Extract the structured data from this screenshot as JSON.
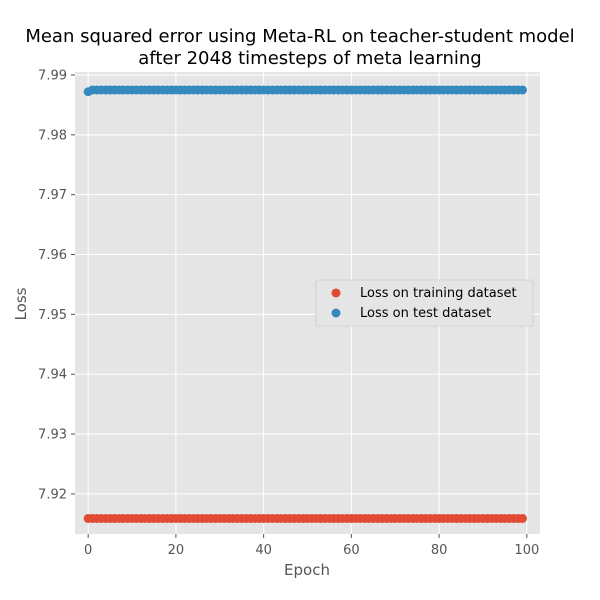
{
  "chart_data": {
    "type": "scatter",
    "title": "Mean squared error using Meta-RL on teacher-student model\nafter 2048 timesteps of meta learning",
    "title_lines": [
      "Mean squared error using Meta-RL on teacher-student model",
      "after 2048 timesteps of meta learning"
    ],
    "xlabel": "Epoch",
    "ylabel": "Loss",
    "xlim": [
      -3,
      103
    ],
    "ylim": [
      7.9133,
      7.9905
    ],
    "xticks": [
      0,
      20,
      40,
      60,
      80,
      100
    ],
    "xtick_labels": [
      "0",
      "20",
      "40",
      "60",
      "80",
      "100"
    ],
    "yticks": [
      7.92,
      7.93,
      7.94,
      7.95,
      7.96,
      7.97,
      7.98,
      7.99
    ],
    "ytick_labels": [
      "7.92",
      "7.93",
      "7.94",
      "7.95",
      "7.96",
      "7.97",
      "7.98",
      "7.99"
    ],
    "grid": true,
    "legend_position": "center-right",
    "series": [
      {
        "name": "Loss on training dataset",
        "color": "#E24A33",
        "x_start": 0,
        "x_end": 99,
        "y_first": 7.9159,
        "y": 7.9159
      },
      {
        "name": "Loss on test dataset",
        "color": "#348ABD",
        "x_start": 0,
        "x_end": 99,
        "y_first": 7.9872,
        "y": 7.9875
      }
    ]
  }
}
